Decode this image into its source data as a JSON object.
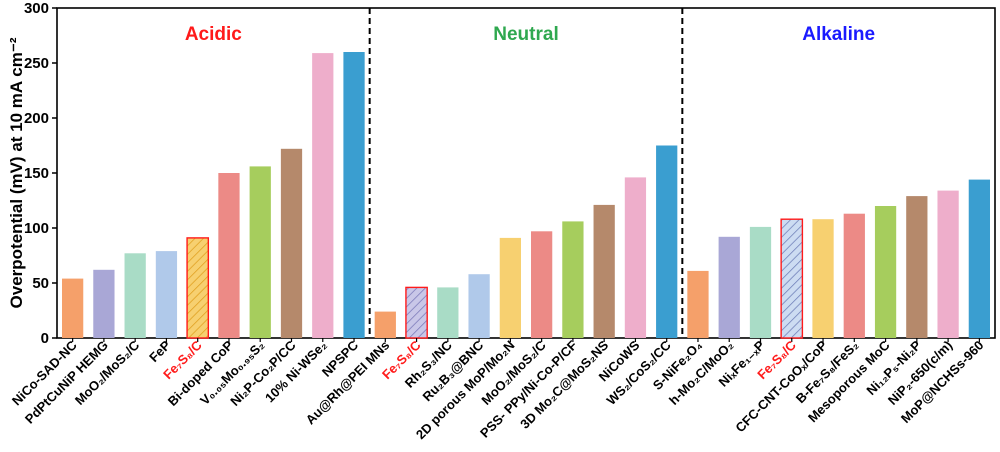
{
  "chart_data": {
    "type": "bar",
    "ylabel": "Overpotential (mV) at 10 mA cm⁻²",
    "xlabel": "",
    "ylim": [
      0,
      300
    ],
    "yticks": [
      0,
      50,
      100,
      150,
      200,
      250,
      300
    ],
    "grid": false,
    "groups": [
      {
        "label": "Acidic",
        "color": "#ff1a1a",
        "bars": [
          {
            "label": "NiCo-SAD-NC",
            "value": 54,
            "color": "#f5a06a",
            "highlight": false
          },
          {
            "label": "PdPtCuNiP HEMG",
            "value": 62,
            "color": "#a9a7d6",
            "highlight": false
          },
          {
            "label": "MoO₂/MoS₂/C",
            "value": 77,
            "color": "#a9dcc6",
            "highlight": false
          },
          {
            "label": "FeP",
            "value": 79,
            "color": "#b0c9ea",
            "highlight": false
          },
          {
            "label": "Fe₇S₈/C",
            "value": 91,
            "color": "#f7d070",
            "highlight": true
          },
          {
            "label": "Bi-doped CoP",
            "value": 150,
            "color": "#ec8a86",
            "highlight": false
          },
          {
            "label": "V₀.₀₅Mo₀.₉₅S₂",
            "value": 156,
            "color": "#a6cd5d",
            "highlight": false
          },
          {
            "label": "Ni₂P-Co₂P/CC",
            "value": 172,
            "color": "#b5896b",
            "highlight": false
          },
          {
            "label": "10% Ni-WSe₂",
            "value": 259,
            "color": "#eeaecb",
            "highlight": false
          },
          {
            "label": "NPSPC",
            "value": 260,
            "color": "#3a9ed0",
            "highlight": false
          }
        ]
      },
      {
        "label": "Neutral",
        "color": "#2fa84f",
        "bars": [
          {
            "label": "Au@Rh@PEI MNs",
            "value": 24,
            "color": "#f5a06a",
            "highlight": false
          },
          {
            "label": "Fe₇S₈/C",
            "value": 46,
            "color": "#a9a7d6",
            "highlight": true
          },
          {
            "label": "Rh₂S₃/NC",
            "value": 46,
            "color": "#a9dcc6",
            "highlight": false
          },
          {
            "label": "Ru₂B₃@BNC",
            "value": 58,
            "color": "#b0c9ea",
            "highlight": false
          },
          {
            "label": "2D porous MoP/Mo₂N",
            "value": 91,
            "color": "#f7d070",
            "highlight": false
          },
          {
            "label": "MoO₂/MoS₂/C",
            "value": 97,
            "color": "#ec8a86",
            "highlight": false
          },
          {
            "label": "PSS- PPy/Ni-Co-P/CF",
            "value": 106,
            "color": "#a6cd5d",
            "highlight": false
          },
          {
            "label": "3D Mo₂C@MoS₂NS",
            "value": 121,
            "color": "#b5896b",
            "highlight": false
          },
          {
            "label": "NiCoWS",
            "value": 146,
            "color": "#eeaecb",
            "highlight": false
          },
          {
            "label": "WS₂/CoS₂/CC",
            "value": 175,
            "color": "#3a9ed0",
            "highlight": false
          }
        ]
      },
      {
        "label": "Alkaline",
        "color": "#1a1aff",
        "bars": [
          {
            "label": "S-NiFe₂O₄",
            "value": 61,
            "color": "#f5a06a",
            "highlight": false
          },
          {
            "label": "h-Mo₂C/MoO₂",
            "value": 92,
            "color": "#a9a7d6",
            "highlight": false
          },
          {
            "label": "NiₓFe₁₋ₓP",
            "value": 101,
            "color": "#a9dcc6",
            "highlight": false
          },
          {
            "label": "Fe₇S₈/C",
            "value": 108,
            "color": "#b0c9ea",
            "highlight": true
          },
          {
            "label": "CFC-CNT-CoOₓ/CoP",
            "value": 108,
            "color": "#f7d070",
            "highlight": false
          },
          {
            "label": "B-Fe₇S₈/FeS₂",
            "value": 113,
            "color": "#ec8a86",
            "highlight": false
          },
          {
            "label": "Mesoporous MoC",
            "value": 120,
            "color": "#a6cd5d",
            "highlight": false
          },
          {
            "label": "Ni₁₂P₅-Ni₂P",
            "value": 129,
            "color": "#b5896b",
            "highlight": false
          },
          {
            "label": "NiP₂-650(c/m)",
            "value": 134,
            "color": "#eeaecb",
            "highlight": false
          },
          {
            "label": "MoP@NCHSs-960",
            "value": 144,
            "color": "#3a9ed0",
            "highlight": false
          }
        ]
      }
    ],
    "highlight_label_color": "#ff1a1a"
  }
}
